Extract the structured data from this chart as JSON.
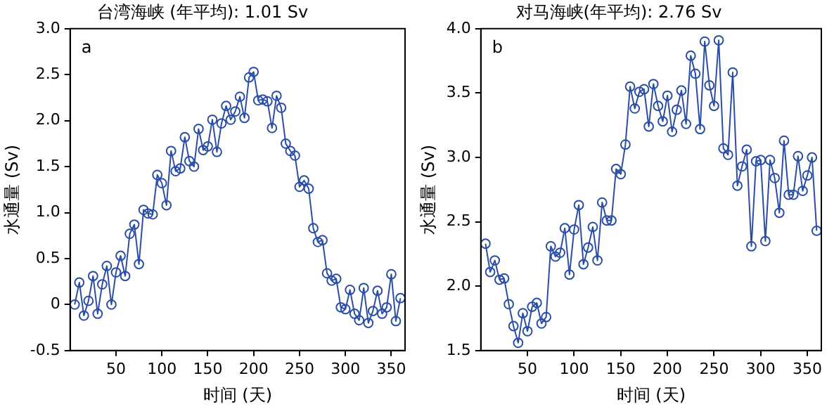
{
  "chart_data": [
    {
      "type": "line",
      "title": "台湾海峡 (年平均): 1.01 Sv",
      "xlabel": "时间 (天)",
      "ylabel": "水通量 (Sv)",
      "annotations": [
        "a"
      ],
      "marker": "circle",
      "line_style": "solid",
      "grid": false,
      "legend": false,
      "x": [
        5,
        10,
        15,
        20,
        25,
        30,
        35,
        40,
        45,
        50,
        55,
        60,
        65,
        70,
        75,
        80,
        85,
        90,
        95,
        100,
        105,
        110,
        115,
        120,
        125,
        130,
        135,
        140,
        145,
        150,
        155,
        160,
        165,
        170,
        175,
        180,
        185,
        190,
        195,
        200,
        205,
        210,
        215,
        220,
        225,
        230,
        235,
        240,
        245,
        250,
        255,
        260,
        265,
        270,
        275,
        280,
        285,
        290,
        295,
        300,
        305,
        310,
        315,
        320,
        325,
        330,
        335,
        340,
        345,
        350,
        355,
        360
      ],
      "xlim": [
        0,
        365
      ],
      "xticks": [
        50,
        100,
        150,
        200,
        250,
        300,
        350
      ],
      "ylim": [
        -0.5,
        3
      ],
      "yticks": [
        {
          "value": -0.5,
          "label": "-0.5"
        },
        {
          "value": 0,
          "label": "0"
        },
        {
          "value": 0.5,
          "label": "0.5"
        },
        {
          "value": 1,
          "label": "1.0"
        },
        {
          "value": 1.5,
          "label": "1.5"
        },
        {
          "value": 2,
          "label": "2.0"
        },
        {
          "value": 2.5,
          "label": "2.5"
        },
        {
          "value": 3,
          "label": "3.0"
        }
      ],
      "series": [
        {
          "color": "#2a4ea6",
          "values": [
            0,
            0.24,
            -0.12,
            0.04,
            0.31,
            -0.1,
            0.22,
            0.42,
            0,
            0.35,
            0.53,
            0.31,
            0.77,
            0.87,
            0.44,
            1.03,
            0.99,
            0.98,
            1.41,
            1.32,
            1.08,
            1.67,
            1.45,
            1.48,
            1.82,
            1.56,
            1.5,
            1.91,
            1.68,
            1.72,
            2.01,
            1.66,
            1.97,
            2.16,
            2.01,
            2.1,
            2.26,
            2.03,
            2.47,
            2.53,
            2.22,
            2.23,
            2.21,
            1.92,
            2.27,
            2.14,
            1.75,
            1.67,
            1.62,
            1.28,
            1.35,
            1.26,
            0.83,
            0.68,
            0.7,
            0.34,
            0.26,
            0.28,
            -0.03,
            -0.05,
            0.16,
            -0.1,
            -0.17,
            0.18,
            -0.2,
            -0.07,
            0.15,
            -0.1,
            -0.03,
            0.33,
            -0.18,
            0.07
          ]
        }
      ]
    },
    {
      "type": "line",
      "title": "对马海峡(年平均): 2.76 Sv",
      "xlabel": "时间 (天)",
      "ylabel": "水通量 (Sv)",
      "annotations": [
        "b"
      ],
      "marker": "circle",
      "line_style": "solid",
      "grid": false,
      "legend": false,
      "x": [
        5,
        10,
        15,
        20,
        25,
        30,
        35,
        40,
        45,
        50,
        55,
        60,
        65,
        70,
        75,
        80,
        85,
        90,
        95,
        100,
        105,
        110,
        115,
        120,
        125,
        130,
        135,
        140,
        145,
        150,
        155,
        160,
        165,
        170,
        175,
        180,
        185,
        190,
        195,
        200,
        205,
        210,
        215,
        220,
        225,
        230,
        235,
        240,
        245,
        250,
        255,
        260,
        265,
        270,
        275,
        280,
        285,
        290,
        295,
        300,
        305,
        310,
        315,
        320,
        325,
        330,
        335,
        340,
        345,
        350,
        355,
        360
      ],
      "xlim": [
        0,
        365
      ],
      "xticks": [
        50,
        100,
        150,
        200,
        250,
        300,
        350
      ],
      "ylim": [
        1.5,
        4
      ],
      "yticks": [
        {
          "value": 1.5,
          "label": "1.5"
        },
        {
          "value": 2,
          "label": "2.0"
        },
        {
          "value": 2.5,
          "label": "2.5"
        },
        {
          "value": 3,
          "label": "3.0"
        },
        {
          "value": 3.5,
          "label": "3.5"
        },
        {
          "value": 4,
          "label": "4.0"
        }
      ],
      "series": [
        {
          "color": "#2a4ea6",
          "values": [
            2.33,
            2.11,
            2.2,
            2.05,
            2.06,
            1.86,
            1.69,
            1.56,
            1.79,
            1.65,
            1.84,
            1.87,
            1.71,
            1.76,
            2.31,
            2.23,
            2.26,
            2.45,
            2.09,
            2.44,
            2.63,
            2.17,
            2.3,
            2.46,
            2.2,
            2.65,
            2.51,
            2.51,
            2.91,
            2.87,
            3.1,
            3.55,
            3.38,
            3.51,
            3.53,
            3.24,
            3.57,
            3.4,
            3.28,
            3.48,
            3.2,
            3.37,
            3.52,
            3.26,
            3.79,
            3.65,
            3.22,
            3.9,
            3.56,
            3.4,
            3.91,
            3.07,
            3.02,
            3.66,
            2.78,
            2.93,
            3.06,
            2.31,
            2.97,
            2.98,
            2.35,
            2.98,
            2.84,
            2.57,
            3.13,
            2.71,
            2.71,
            3.01,
            2.74,
            2.86,
            3.0,
            2.43
          ]
        }
      ]
    }
  ]
}
